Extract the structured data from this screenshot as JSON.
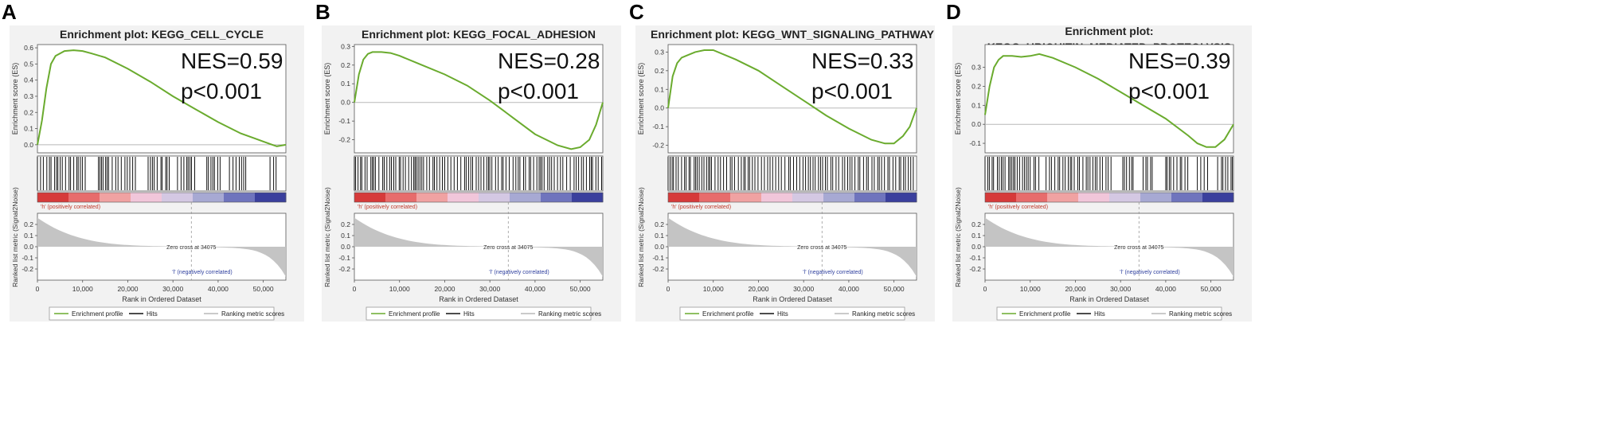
{
  "colors": {
    "curve": "#6aab2e",
    "panel_bg": "#f2f2f2",
    "axis": "#555555",
    "zero_line": "#b8b8b8",
    "hits": "#111111",
    "metric_fill": "#c4c4c4",
    "pos_label": "#c0392b",
    "neg_label": "#2e3f9e",
    "heat": [
      "#d63a3a",
      "#e76c6c",
      "#f0a2a2",
      "#f1c6da",
      "#d4c8e3",
      "#a7a9d3",
      "#6f74bd",
      "#3a3f9d"
    ]
  },
  "chart_data": [
    {
      "type": "line",
      "panel_label": "A",
      "title": "Enrichment plot: KEGG_CELL_CYCLE",
      "nes_text": "NES=0.59",
      "p_text": "p<0.001",
      "ylabel": "Enrichment score (ES)",
      "ylim": [
        -0.05,
        0.62
      ],
      "yticks": [
        {
          "v": 0.0,
          "label": "0.0"
        },
        {
          "v": 0.1,
          "label": "0.1"
        },
        {
          "v": 0.2,
          "label": "0.2"
        },
        {
          "v": 0.3,
          "label": "0.3"
        },
        {
          "v": 0.4,
          "label": "0.4"
        },
        {
          "v": 0.5,
          "label": "0.5"
        },
        {
          "v": 0.6,
          "label": "0.6"
        }
      ],
      "x": [
        0,
        1000,
        2000,
        3000,
        4000,
        6000,
        8000,
        10000,
        12000,
        15000,
        20000,
        25000,
        30000,
        35000,
        40000,
        45000,
        48000,
        50000,
        52000,
        53000,
        55000
      ],
      "es": [
        0.0,
        0.15,
        0.35,
        0.5,
        0.55,
        0.58,
        0.585,
        0.58,
        0.565,
        0.54,
        0.47,
        0.39,
        0.3,
        0.22,
        0.14,
        0.07,
        0.04,
        0.02,
        0.0,
        -0.01,
        0.0
      ],
      "hits_segments": [
        [
          0,
          11000
        ],
        [
          13500,
          22000
        ],
        [
          24500,
          29500
        ],
        [
          31000,
          35000
        ],
        [
          37500,
          40500
        ],
        [
          42500,
          46500
        ],
        [
          51500,
          53500
        ]
      ],
      "hit_density": 1.0,
      "xlabel": "Rank in Ordered Dataset",
      "xlim": [
        0,
        55000
      ],
      "xticks": [
        {
          "v": 0,
          "label": "0"
        },
        {
          "v": 10000,
          "label": "10,000"
        },
        {
          "v": 20000,
          "label": "20,000"
        },
        {
          "v": 30000,
          "label": "30,000"
        },
        {
          "v": 40000,
          "label": "40,000"
        },
        {
          "v": 50000,
          "label": "50,000"
        }
      ],
      "metric_ylabel": "Ranked list metric (Signal2Noise)",
      "metric_ylim": [
        -0.3,
        0.3
      ],
      "metric_yticks": [
        {
          "v": 0.2,
          "label": "0.2"
        },
        {
          "v": 0.1,
          "label": "0.1"
        },
        {
          "v": 0.0,
          "label": "0.0"
        },
        {
          "v": -0.1,
          "label": "-0.1"
        },
        {
          "v": -0.2,
          "label": "-0.2"
        }
      ],
      "pos_label": "'h' (positively correlated)",
      "neg_label": "'l' (negatively correlated)",
      "zero_cross_text": "Zero cross at 34075",
      "zero_cross": 34075,
      "legend": [
        "Enrichment profile",
        "Hits",
        "Ranking metric scores"
      ]
    },
    {
      "type": "line",
      "panel_label": "B",
      "title": "Enrichment plot: KEGG_FOCAL_ADHESION",
      "nes_text": "NES=0.28",
      "p_text": "p<0.001",
      "ylabel": "Enrichment score (ES)",
      "ylim": [
        -0.27,
        0.31
      ],
      "yticks": [
        {
          "v": -0.2,
          "label": "-0.2"
        },
        {
          "v": -0.1,
          "label": "-0.1"
        },
        {
          "v": 0.0,
          "label": "0.0"
        },
        {
          "v": 0.1,
          "label": "0.1"
        },
        {
          "v": 0.2,
          "label": "0.2"
        },
        {
          "v": 0.3,
          "label": "0.3"
        }
      ],
      "x": [
        0,
        1000,
        2000,
        3000,
        4000,
        6000,
        8000,
        10000,
        15000,
        20000,
        25000,
        30000,
        35000,
        40000,
        45000,
        48000,
        50000,
        52000,
        53500,
        55000
      ],
      "es": [
        0.0,
        0.15,
        0.23,
        0.26,
        0.27,
        0.27,
        0.265,
        0.25,
        0.2,
        0.15,
        0.09,
        0.01,
        -0.08,
        -0.17,
        -0.23,
        -0.25,
        -0.24,
        -0.2,
        -0.12,
        0.0
      ],
      "hits_segments": [
        [
          0,
          55000
        ]
      ],
      "hit_density": 1.0,
      "xlabel": "Rank in Ordered Dataset",
      "xlim": [
        0,
        55000
      ],
      "xticks": [
        {
          "v": 0,
          "label": "0"
        },
        {
          "v": 10000,
          "label": "10,000"
        },
        {
          "v": 20000,
          "label": "20,000"
        },
        {
          "v": 30000,
          "label": "30,000"
        },
        {
          "v": 40000,
          "label": "40,000"
        },
        {
          "v": 50000,
          "label": "50,000"
        }
      ],
      "metric_ylabel": "Ranked list metric (Signal2Noise)",
      "metric_ylim": [
        -0.3,
        0.3
      ],
      "metric_yticks": [
        {
          "v": 0.2,
          "label": "0.2"
        },
        {
          "v": 0.1,
          "label": "0.1"
        },
        {
          "v": 0.0,
          "label": "0.0"
        },
        {
          "v": -0.1,
          "label": "-0.1"
        },
        {
          "v": -0.2,
          "label": "-0.2"
        }
      ],
      "pos_label": "'h' (positively correlated)",
      "neg_label": "'l' (negatively correlated)",
      "zero_cross_text": "Zero cross at 34075",
      "zero_cross": 34075,
      "legend": [
        "Enrichment profile",
        "Hits",
        "Ranking metric scores"
      ]
    },
    {
      "type": "line",
      "panel_label": "C",
      "title": "Enrichment plot: KEGG_WNT_SIGNALING_PATHWAY",
      "nes_text": "NES=0.33",
      "p_text": "p<0.001",
      "ylabel": "Enrichment score (ES)",
      "ylim": [
        -0.24,
        0.34
      ],
      "yticks": [
        {
          "v": -0.2,
          "label": "-0.2"
        },
        {
          "v": -0.1,
          "label": "-0.1"
        },
        {
          "v": 0.0,
          "label": "0.0"
        },
        {
          "v": 0.1,
          "label": "0.1"
        },
        {
          "v": 0.2,
          "label": "0.2"
        },
        {
          "v": 0.3,
          "label": "0.3"
        }
      ],
      "x": [
        0,
        1000,
        2000,
        3000,
        4000,
        6000,
        8000,
        10000,
        15000,
        20000,
        25000,
        30000,
        35000,
        40000,
        45000,
        48000,
        50000,
        52000,
        53500,
        55000
      ],
      "es": [
        0.0,
        0.17,
        0.24,
        0.27,
        0.28,
        0.3,
        0.31,
        0.31,
        0.26,
        0.2,
        0.12,
        0.04,
        -0.04,
        -0.11,
        -0.17,
        -0.19,
        -0.19,
        -0.15,
        -0.1,
        0.0
      ],
      "hits_segments": [
        [
          0,
          55000
        ]
      ],
      "hit_density": 1.0,
      "xlabel": "Rank in Ordered Dataset",
      "xlim": [
        0,
        55000
      ],
      "xticks": [
        {
          "v": 0,
          "label": "0"
        },
        {
          "v": 10000,
          "label": "10,000"
        },
        {
          "v": 20000,
          "label": "20,000"
        },
        {
          "v": 30000,
          "label": "30,000"
        },
        {
          "v": 40000,
          "label": "40,000"
        },
        {
          "v": 50000,
          "label": "50,000"
        }
      ],
      "metric_ylabel": "Ranked list metric (Signal2Noise)",
      "metric_ylim": [
        -0.3,
        0.3
      ],
      "metric_yticks": [
        {
          "v": 0.2,
          "label": "0.2"
        },
        {
          "v": 0.1,
          "label": "0.1"
        },
        {
          "v": 0.0,
          "label": "0.0"
        },
        {
          "v": -0.1,
          "label": "-0.1"
        },
        {
          "v": -0.2,
          "label": "-0.2"
        }
      ],
      "pos_label": "'h' (positively correlated)",
      "neg_label": "'l' (negatively correlated)",
      "zero_cross_text": "Zero cross at 34075",
      "zero_cross": 34075,
      "legend": [
        "Enrichment profile",
        "Hits",
        "Ranking metric scores"
      ]
    },
    {
      "type": "line",
      "panel_label": "D",
      "title_lines": [
        "Enrichment plot:",
        "KEGG_UBIQUITIN_MEDIATED_PROTEOLYSIS"
      ],
      "nes_text": "NES=0.39",
      "p_text": "p<0.001",
      "ylabel": "Enrichment score (ES)",
      "ylim": [
        -0.15,
        0.42
      ],
      "yticks": [
        {
          "v": -0.1,
          "label": "-0.1"
        },
        {
          "v": 0.0,
          "label": "0.0"
        },
        {
          "v": 0.1,
          "label": "0.1"
        },
        {
          "v": 0.2,
          "label": "0.2"
        },
        {
          "v": 0.3,
          "label": "0.3"
        }
      ],
      "x": [
        0,
        1000,
        2000,
        3000,
        4000,
        6000,
        8000,
        10000,
        12000,
        15000,
        20000,
        25000,
        30000,
        35000,
        40000,
        45000,
        47000,
        49000,
        51000,
        53000,
        55000
      ],
      "es": [
        0.05,
        0.2,
        0.3,
        0.34,
        0.36,
        0.36,
        0.355,
        0.36,
        0.37,
        0.35,
        0.3,
        0.24,
        0.17,
        0.1,
        0.03,
        -0.06,
        -0.1,
        -0.12,
        -0.12,
        -0.08,
        0.0
      ],
      "hits_segments": [
        [
          0,
          12000
        ],
        [
          13500,
          28000
        ],
        [
          30500,
          33000
        ],
        [
          35000,
          37500
        ],
        [
          40000,
          45000
        ],
        [
          47000,
          49500
        ],
        [
          51500,
          55000
        ]
      ],
      "hit_density": 1.0,
      "xlabel": "Rank in Ordered Dataset",
      "xlim": [
        0,
        55000
      ],
      "xticks": [
        {
          "v": 0,
          "label": "0"
        },
        {
          "v": 10000,
          "label": "10,000"
        },
        {
          "v": 20000,
          "label": "20,000"
        },
        {
          "v": 30000,
          "label": "30,000"
        },
        {
          "v": 40000,
          "label": "40,000"
        },
        {
          "v": 50000,
          "label": "50,000"
        }
      ],
      "metric_ylabel": "Ranked list metric (Signal2Noise)",
      "metric_ylim": [
        -0.3,
        0.3
      ],
      "metric_yticks": [
        {
          "v": 0.2,
          "label": "0.2"
        },
        {
          "v": 0.1,
          "label": "0.1"
        },
        {
          "v": 0.0,
          "label": "0.0"
        },
        {
          "v": -0.1,
          "label": "-0.1"
        },
        {
          "v": -0.2,
          "label": "-0.2"
        }
      ],
      "pos_label": "'h' (positively correlated)",
      "neg_label": "'l' (negatively correlated)",
      "zero_cross_text": "Zero cross at 34075",
      "zero_cross": 34075,
      "legend": [
        "Enrichment profile",
        "Hits",
        "Ranking metric scores"
      ]
    }
  ]
}
